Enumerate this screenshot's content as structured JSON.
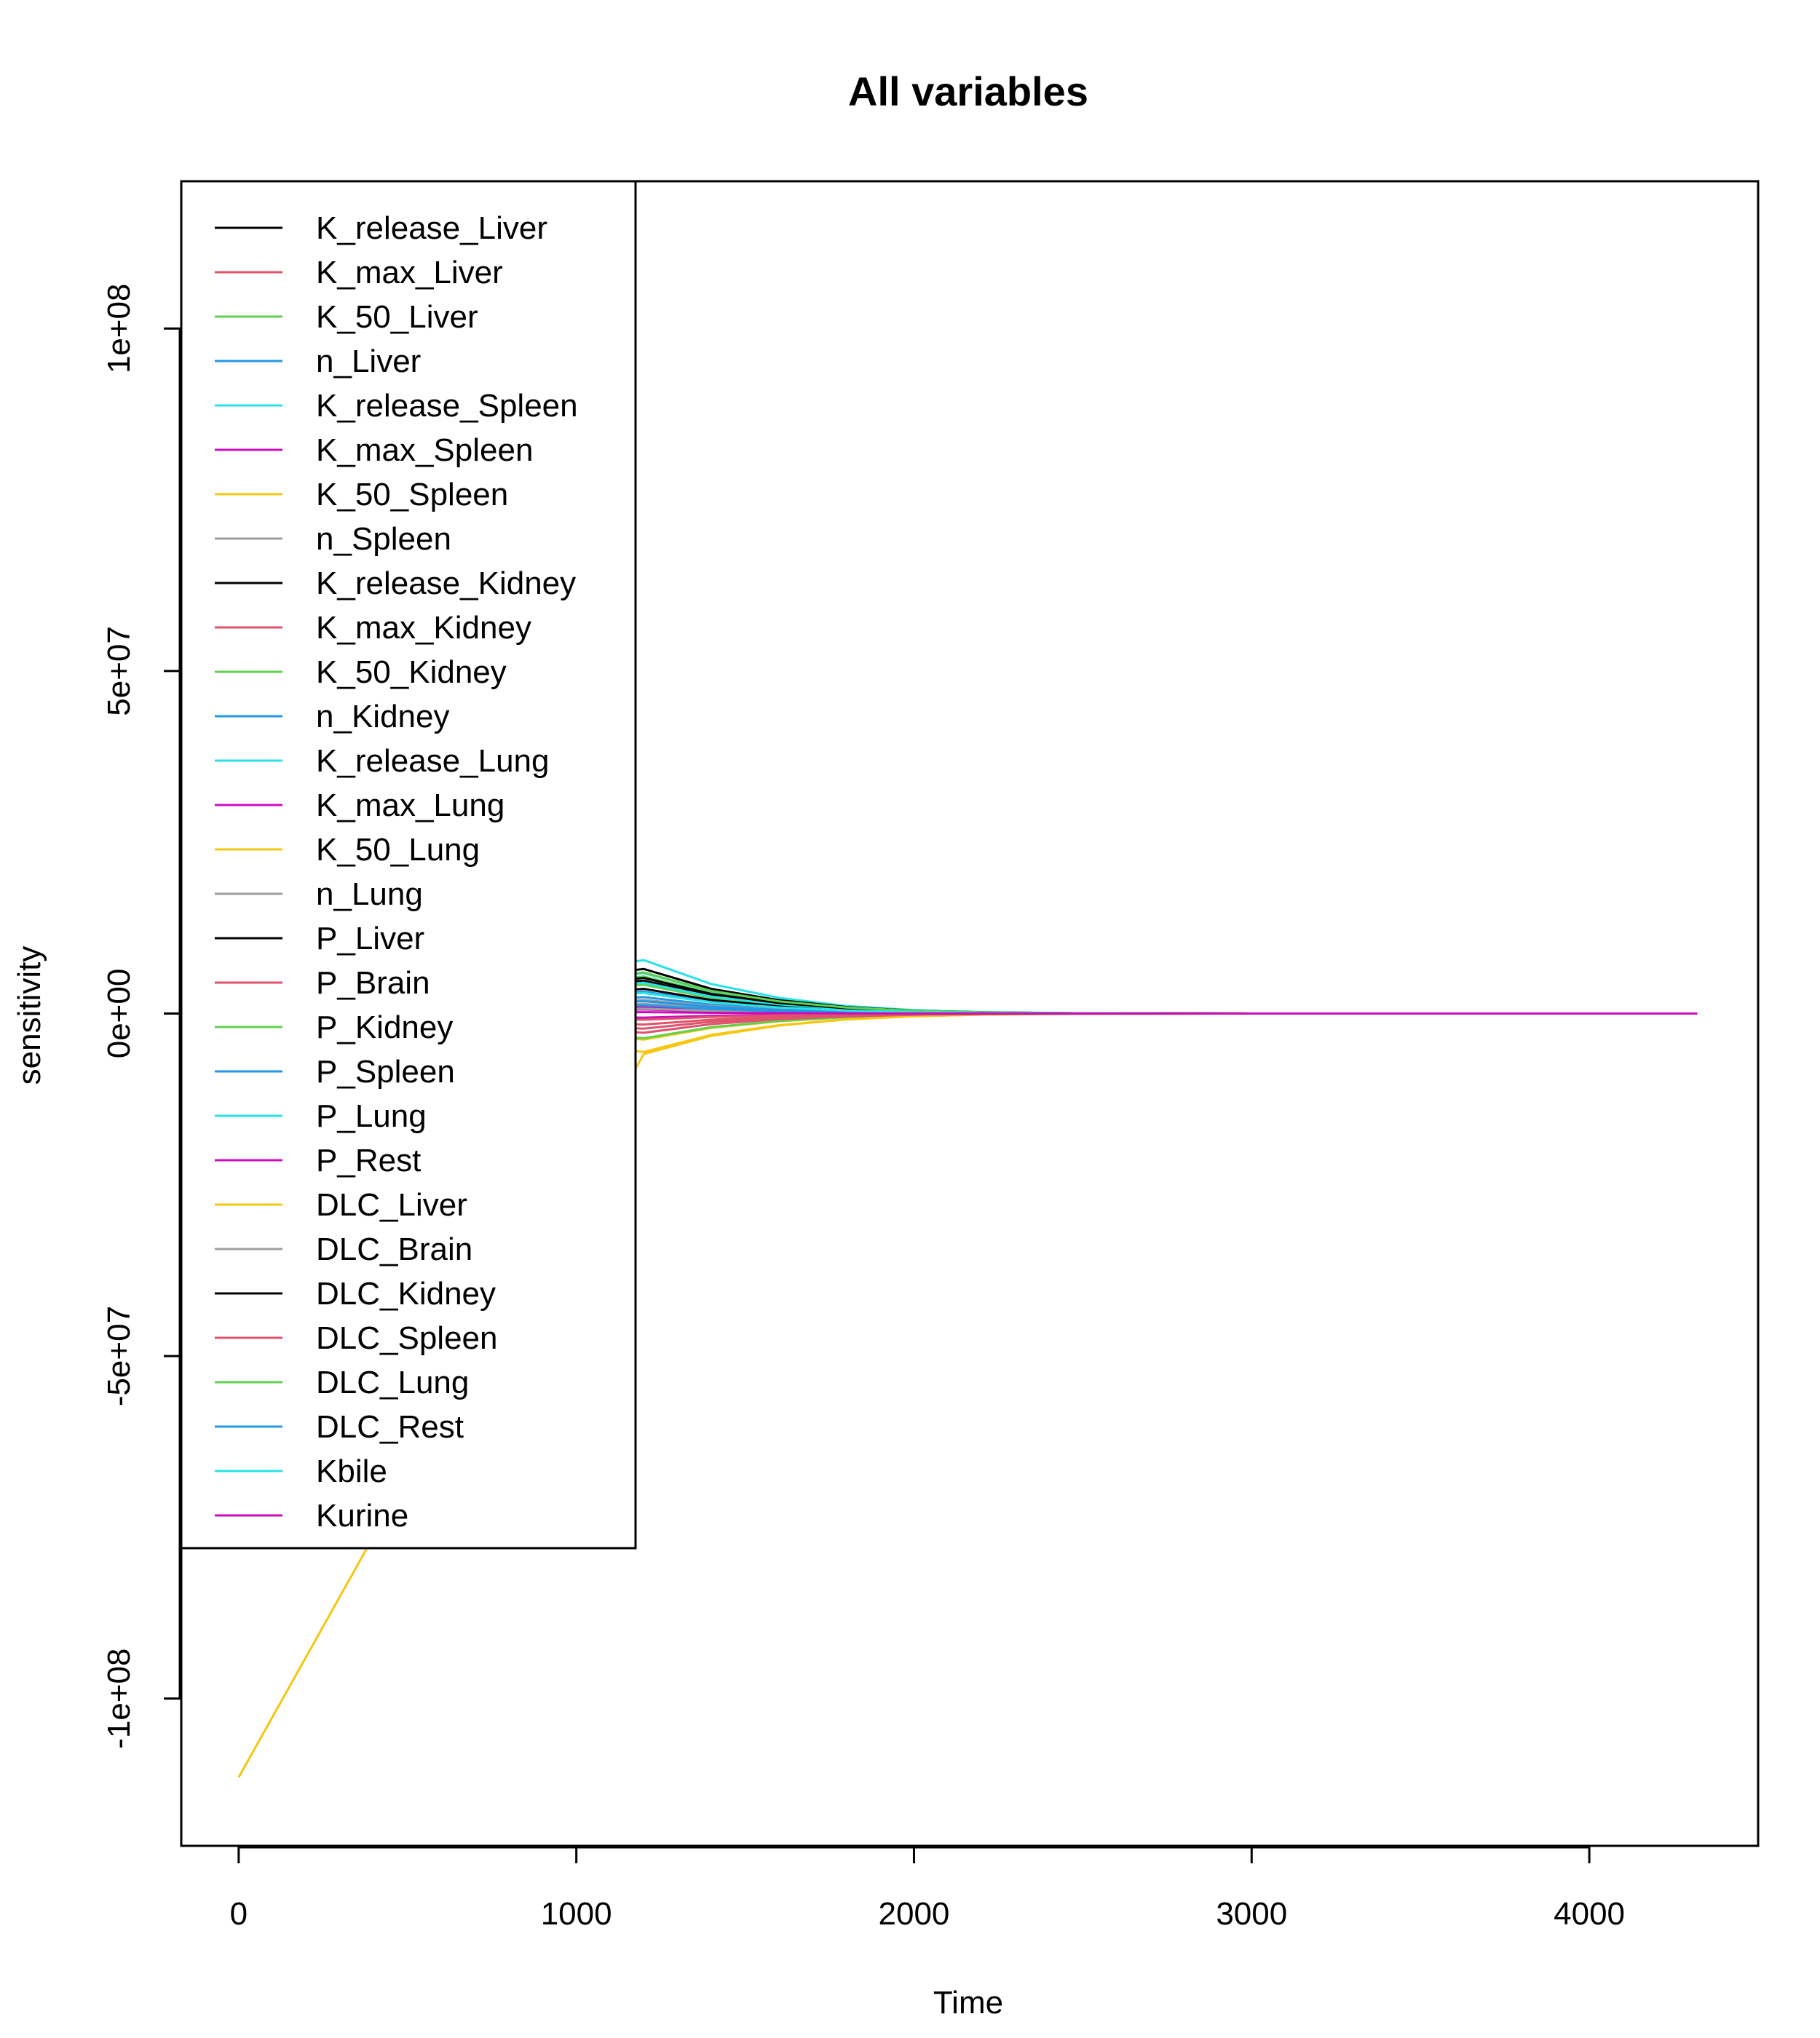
{
  "chart_data": {
    "type": "line",
    "title": "All variables",
    "xlabel": "Time",
    "ylabel": "sensitivity",
    "xlim": [
      -170,
      4500
    ],
    "ylim": [
      -121500000,
      121500000
    ],
    "x_ticks": [
      0,
      1000,
      2000,
      3000,
      4000
    ],
    "x_tick_labels": [
      "0",
      "1000",
      "2000",
      "3000",
      "4000"
    ],
    "y_ticks": [
      -100000000,
      -50000000,
      0,
      50000000,
      100000000
    ],
    "y_tick_labels": [
      "-1e+08",
      "-5e+07",
      "0e+00",
      "5e+07",
      "1e+08"
    ],
    "grid": false,
    "legend_position": "top-left",
    "x": [
      0,
      1200,
      1400,
      1600,
      1800,
      2000,
      2200,
      2500,
      3000,
      4320
    ],
    "series": [
      {
        "name": "K_release_Liver",
        "color": "#000000",
        "values": [
          0,
          4800000,
          2600000,
          1400000,
          700000,
          300000,
          130000,
          30000,
          0,
          0
        ]
      },
      {
        "name": "K_max_Liver",
        "color": "#DF536B",
        "values": [
          0,
          -1600000,
          -900000,
          -450000,
          -220000,
          -100000,
          -40000,
          -10000,
          0,
          0
        ]
      },
      {
        "name": "K_50_Liver",
        "color": "#61D04F",
        "values": [
          0,
          5400000,
          3000000,
          1600000,
          800000,
          350000,
          150000,
          35000,
          0,
          0
        ]
      },
      {
        "name": "n_Liver",
        "color": "#2297E6",
        "values": [
          0,
          2400000,
          1300000,
          700000,
          350000,
          160000,
          70000,
          15000,
          0,
          0
        ]
      },
      {
        "name": "K_release_Spleen",
        "color": "#28E2E5",
        "values": [
          0,
          7800000,
          4300000,
          2300000,
          1100000,
          500000,
          210000,
          50000,
          0,
          0
        ]
      },
      {
        "name": "K_max_Spleen",
        "color": "#CD0BBC",
        "values": [
          0,
          -600000,
          -330000,
          -170000,
          -80000,
          -35000,
          -15000,
          -3000,
          0,
          0
        ]
      },
      {
        "name": "K_50_Spleen",
        "color": "#F5C710",
        "values": [
          0,
          -5600000,
          -3100000,
          -1700000,
          -850000,
          -380000,
          -160000,
          -40000,
          0,
          0
        ]
      },
      {
        "name": "n_Spleen",
        "color": "#9E9E9E",
        "values": [
          0,
          1400000,
          780000,
          420000,
          210000,
          95000,
          40000,
          9000,
          0,
          0
        ]
      },
      {
        "name": "K_release_Kidney",
        "color": "#000000",
        "values": [
          0,
          6500000,
          3600000,
          1950000,
          950000,
          430000,
          180000,
          42000,
          0,
          0
        ]
      },
      {
        "name": "K_max_Kidney",
        "color": "#DF536B",
        "values": [
          0,
          -2200000,
          -1200000,
          -650000,
          -320000,
          -140000,
          -60000,
          -14000,
          0,
          0
        ]
      },
      {
        "name": "K_50_Kidney",
        "color": "#61D04F",
        "values": [
          0,
          4200000,
          2300000,
          1250000,
          620000,
          280000,
          120000,
          28000,
          0,
          0
        ]
      },
      {
        "name": "n_Kidney",
        "color": "#2297E6",
        "values": [
          0,
          3200000,
          1750000,
          950000,
          470000,
          210000,
          90000,
          21000,
          0,
          0
        ]
      },
      {
        "name": "K_release_Lung",
        "color": "#28E2E5",
        "values": [
          0,
          5900000,
          3250000,
          1750000,
          860000,
          390000,
          165000,
          38000,
          0,
          0
        ]
      },
      {
        "name": "K_max_Lung",
        "color": "#CD0BBC",
        "values": [
          0,
          1000000,
          550000,
          300000,
          150000,
          65000,
          28000,
          6500,
          0,
          0
        ]
      },
      {
        "name": "K_50_Lung",
        "color": "#F5C710",
        "values": [
          0,
          -3800000,
          -2100000,
          -1130000,
          -560000,
          -250000,
          -105000,
          -25000,
          0,
          0
        ]
      },
      {
        "name": "n_Lung",
        "color": "#9E9E9E",
        "values": [
          0,
          2000000,
          1100000,
          590000,
          290000,
          130000,
          55000,
          13000,
          0,
          0
        ]
      },
      {
        "name": "P_Liver",
        "color": "#000000",
        "values": [
          0,
          3600000,
          1980000,
          1070000,
          530000,
          240000,
          100000,
          24000,
          0,
          0
        ]
      },
      {
        "name": "P_Brain",
        "color": "#DF536B",
        "values": [
          0,
          -900000,
          -500000,
          -270000,
          -130000,
          -60000,
          -25000,
          -6000,
          0,
          0
        ]
      },
      {
        "name": "P_Kidney",
        "color": "#61D04F",
        "values": [
          0,
          -3600000,
          -2000000,
          -1080000,
          -530000,
          -240000,
          -100000,
          -24000,
          0,
          0
        ]
      },
      {
        "name": "P_Spleen",
        "color": "#2297E6",
        "values": [
          0,
          1800000,
          990000,
          535000,
          265000,
          120000,
          50000,
          12000,
          0,
          0
        ]
      },
      {
        "name": "P_Lung",
        "color": "#28E2E5",
        "values": [
          0,
          4500000,
          2480000,
          1340000,
          660000,
          300000,
          125000,
          30000,
          0,
          0
        ]
      },
      {
        "name": "P_Rest",
        "color": "#CD0BBC",
        "values": [
          0,
          600000,
          330000,
          180000,
          88000,
          40000,
          17000,
          4000,
          0,
          0
        ]
      },
      {
        "name": "DLC_Liver",
        "color": "#F5C710",
        "values": [
          -111500000,
          -5900000,
          -3250000,
          -1750000,
          -860000,
          -390000,
          -165000,
          -38000,
          0,
          0
        ]
      },
      {
        "name": "DLC_Brain",
        "color": "#9E9E9E",
        "values": [
          0,
          700000,
          380000,
          210000,
          100000,
          46000,
          19000,
          4500,
          0,
          0
        ]
      },
      {
        "name": "DLC_Kidney",
        "color": "#000000",
        "values": [
          0,
          5200000,
          2860000,
          1540000,
          760000,
          340000,
          145000,
          34000,
          0,
          0
        ]
      },
      {
        "name": "DLC_Spleen",
        "color": "#DF536B",
        "values": [
          0,
          -2800000,
          -1540000,
          -830000,
          -410000,
          -185000,
          -78000,
          -18000,
          0,
          0
        ]
      },
      {
        "name": "DLC_Lung",
        "color": "#61D04F",
        "values": [
          0,
          6000000,
          3300000,
          1780000,
          880000,
          395000,
          168000,
          39000,
          0,
          0
        ]
      },
      {
        "name": "DLC_Rest",
        "color": "#2297E6",
        "values": [
          0,
          1200000,
          660000,
          355000,
          175000,
          79000,
          33000,
          7800,
          0,
          0
        ]
      },
      {
        "name": "Kbile",
        "color": "#28E2E5",
        "values": [
          0,
          3000000,
          1650000,
          890000,
          440000,
          200000,
          84000,
          19500,
          0,
          0
        ]
      },
      {
        "name": "Kurine",
        "color": "#CD0BBC",
        "values": [
          0,
          200000,
          110000,
          60000,
          29000,
          13000,
          5500,
          1300,
          0,
          0
        ]
      }
    ]
  }
}
